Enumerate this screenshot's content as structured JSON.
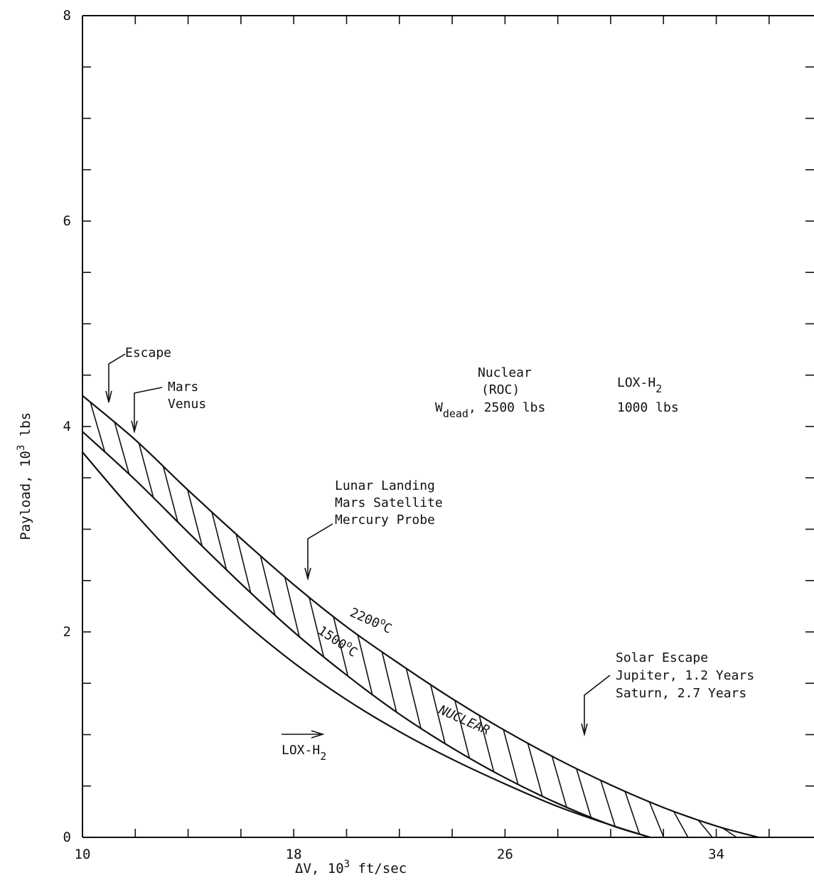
{
  "chart_data": {
    "type": "line",
    "title": "",
    "xlabel": "ΔV, 10",
    "xlabel_sup": "3",
    "xlabel_suffix": " ft/sec",
    "ylabel": "Payload, 10",
    "ylabel_sup": "3",
    "ylabel_suffix": " lbs",
    "xlim": [
      10,
      37.7
    ],
    "ylim": [
      0,
      8
    ],
    "x_tick_labels": [
      "10",
      "18",
      "26",
      "34"
    ],
    "y_tick_labels": [
      "0",
      "2",
      "4",
      "6",
      "8"
    ],
    "grid": false,
    "series": [
      {
        "name": "2200°C",
        "x": [
          10,
          12,
          14,
          16,
          18,
          20,
          22,
          24,
          26,
          28,
          30,
          32,
          34,
          35.6
        ],
        "y": [
          4.3,
          3.87,
          3.38,
          2.91,
          2.46,
          2.05,
          1.69,
          1.35,
          1.04,
          0.76,
          0.51,
          0.29,
          0.11,
          0
        ]
      },
      {
        "name": "1500°C",
        "x": [
          10,
          12,
          14,
          16,
          18,
          20,
          22,
          24,
          26,
          28,
          30,
          31.5
        ],
        "y": [
          3.95,
          3.48,
          2.97,
          2.47,
          2.0,
          1.58,
          1.2,
          0.87,
          0.58,
          0.33,
          0.12,
          0
        ]
      },
      {
        "name": "LOX-H2",
        "x": [
          10,
          12,
          14,
          16,
          18,
          20,
          22,
          24,
          26,
          28,
          30,
          31.5
        ],
        "y": [
          3.75,
          3.15,
          2.6,
          2.12,
          1.7,
          1.34,
          1.03,
          0.76,
          0.52,
          0.3,
          0.12,
          0
        ]
      }
    ],
    "region_label": "NUCLEAR",
    "annotations": {
      "escape": {
        "text": "Escape",
        "x": 11.0
      },
      "mars_venus": {
        "line1": "Mars",
        "line2": "Venus",
        "x": 12.1
      },
      "lunar": {
        "line1": "Lunar Landing",
        "line2": "Mars Satellite",
        "line3": "Mercury Probe",
        "x": 18.8
      },
      "solar": {
        "line1": "Solar Escape",
        "line2": "Jupiter, 1.2 Years",
        "line3": "Saturn, 2.7 Years",
        "x": 29.2
      },
      "curve_2200": {
        "text": "2200",
        "unit": "C"
      },
      "curve_1500": {
        "text": "1500",
        "unit": "C"
      },
      "loxh2_curve": {
        "text": "LOX-H",
        "sub": "2"
      }
    },
    "legend_block": {
      "nuclear_title": "Nuclear",
      "nuclear_sub": "(ROC)",
      "wdead": "W",
      "wdead_sub": "dead",
      "nuclear_weight": ", 2500 lbs",
      "lox_title": "LOX-H",
      "lox_sub": "2",
      "lox_weight": "1000 lbs"
    }
  }
}
